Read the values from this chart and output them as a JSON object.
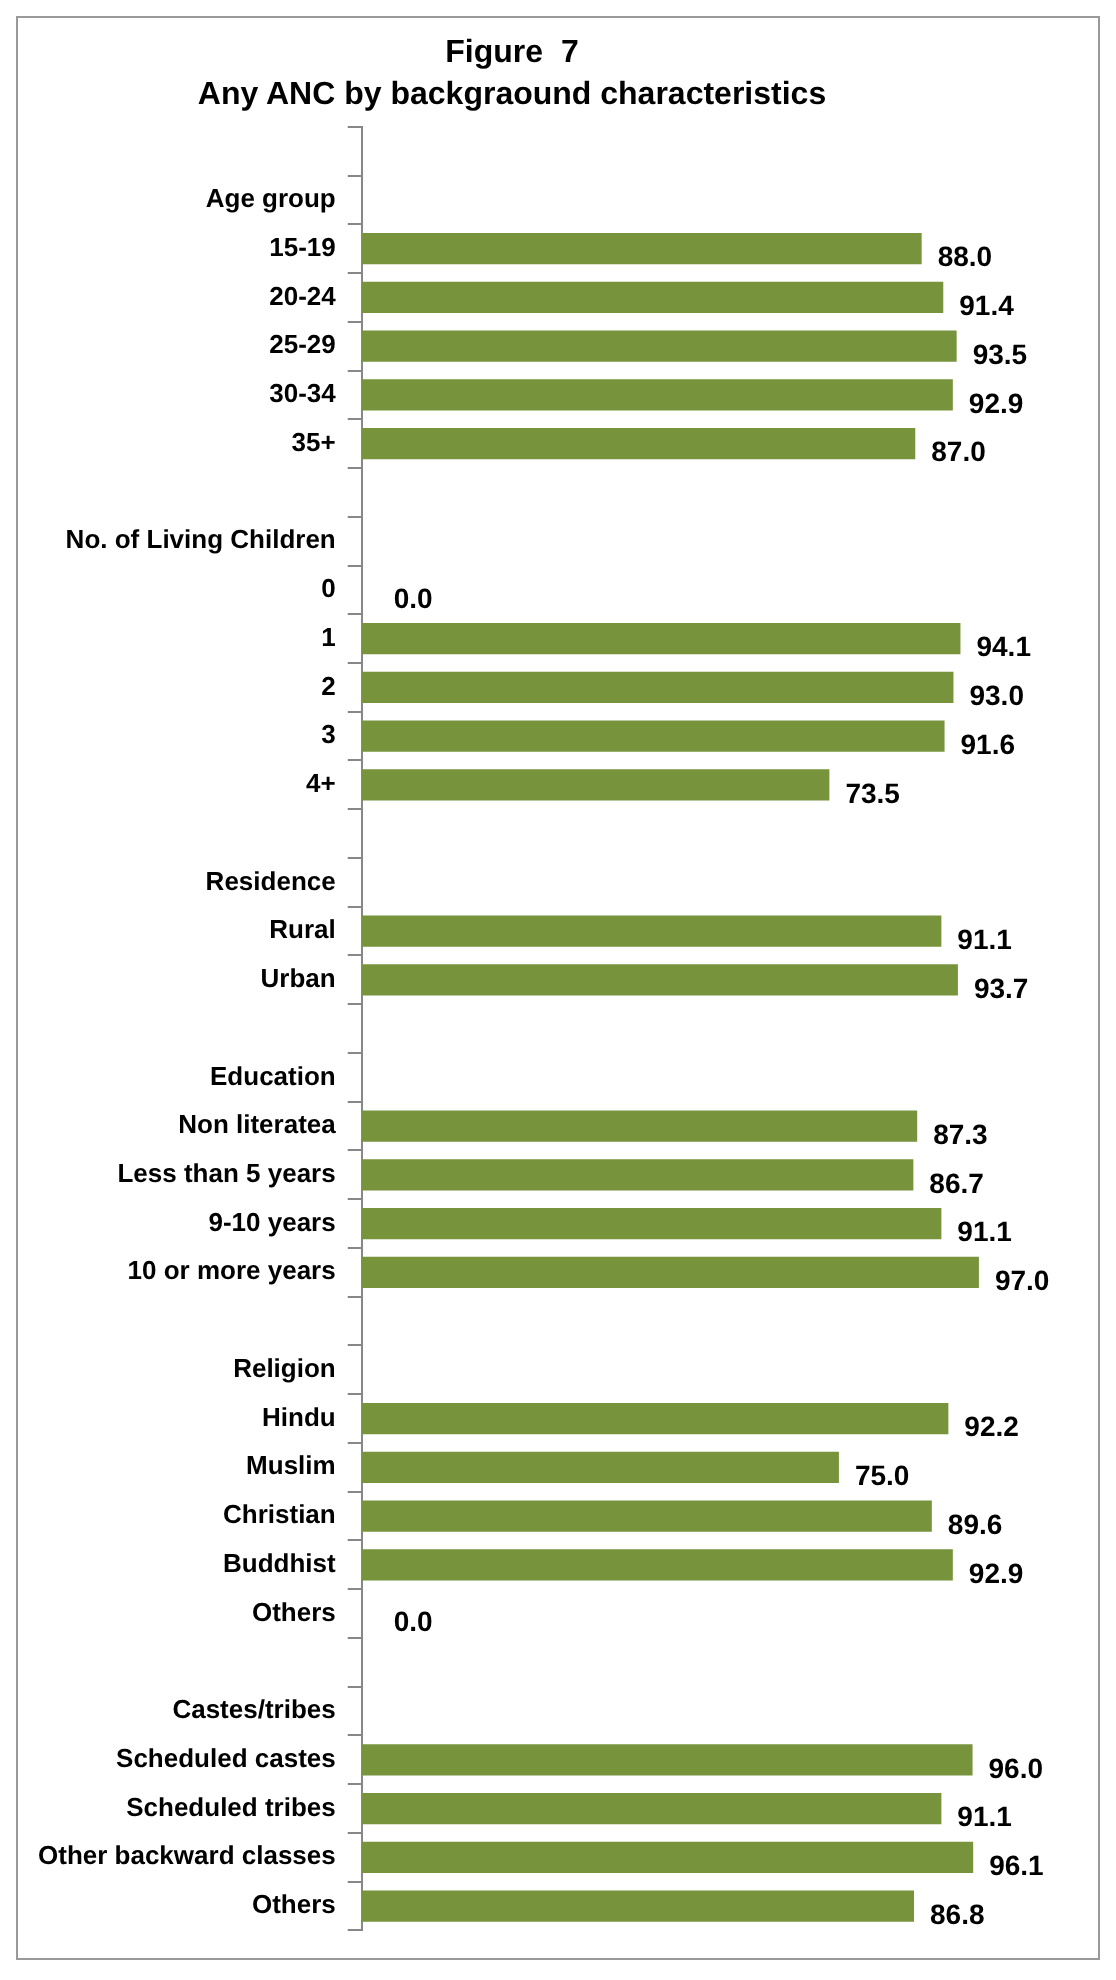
{
  "chart_data": {
    "type": "bar",
    "orientation": "horizontal",
    "title": "Figure  7",
    "subtitle": "Any ANC by backgraound characteristics",
    "categories": [
      null,
      "Age group",
      "15-19",
      "20-24",
      "25-29",
      "30-34",
      "35+",
      null,
      "No. of Living Children",
      "0",
      "1",
      "2",
      "3",
      "4+",
      null,
      "Residence",
      "Rural",
      "Urban",
      null,
      "Education",
      "Non literatea",
      "Less than 5 years",
      "9-10 years",
      "10 or more years",
      null,
      "Religion",
      "Hindu",
      "Muslim",
      "Christian",
      "Buddhist",
      "Others",
      null,
      "Castes/tribes",
      "Scheduled castes",
      "Scheduled tribes",
      "Other backward classes",
      "Others"
    ],
    "values": [
      null,
      null,
      88.0,
      91.4,
      93.5,
      92.9,
      87.0,
      null,
      null,
      0.0,
      94.1,
      93.0,
      91.6,
      73.5,
      null,
      null,
      91.1,
      93.7,
      null,
      null,
      87.3,
      86.7,
      91.1,
      97.0,
      null,
      null,
      92.2,
      75.0,
      89.6,
      92.9,
      0.0,
      null,
      null,
      96.0,
      91.1,
      96.1,
      86.8
    ],
    "value_labels": [
      null,
      null,
      "88.0",
      "91.4",
      "93.5",
      "92.9",
      "87.0",
      null,
      null,
      "0.0",
      "94.1",
      "93.0",
      "91.6",
      "73.5",
      null,
      null,
      "91.1",
      "93.7",
      null,
      null,
      "87.3",
      "86.7",
      "91.1",
      "97.0",
      null,
      null,
      "92.2",
      "75.0",
      "89.6",
      "92.9",
      "0.0",
      null,
      null,
      "96.0",
      "91.1",
      "96.1",
      "86.8"
    ],
    "color": "#77933c"
  }
}
